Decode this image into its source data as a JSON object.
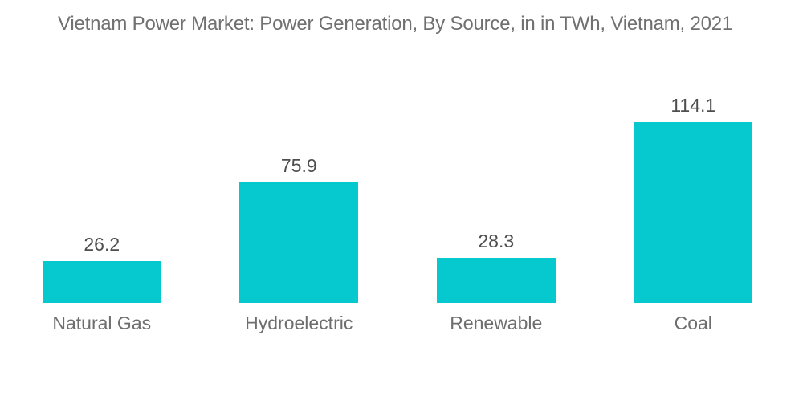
{
  "title": "Vietnam Power Market: Power Generation, By Source, in in TWh, Vietnam, 2021",
  "colors": {
    "background": "#FFFFFF",
    "bar": "#05C9CF",
    "title_text": "#707070",
    "value_text": "#4E4E4E",
    "category_text": "#6E6E6E"
  },
  "chart_data": {
    "type": "bar",
    "categories": [
      "Natural Gas",
      "Hydroelectric",
      "Renewable",
      "Coal"
    ],
    "values": [
      26.2,
      75.9,
      28.3,
      114.1
    ],
    "title": "Vietnam Power Market: Power Generation, By Source, in in TWh, Vietnam, 2021",
    "xlabel": "",
    "ylabel": "",
    "unit": "TWh",
    "ylim": [
      0,
      120
    ],
    "grid": false,
    "axes_visible": false,
    "legend": "none",
    "value_labels": "above"
  }
}
